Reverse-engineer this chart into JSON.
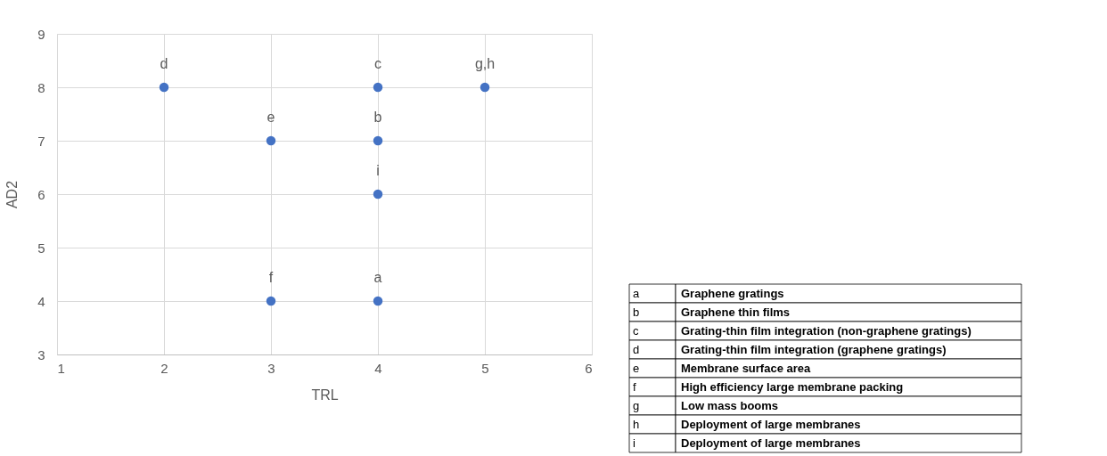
{
  "chart_data": {
    "type": "scatter",
    "xlabel": "TRL",
    "ylabel": "AD2",
    "x": [
      4,
      4,
      4,
      2,
      3,
      3,
      5,
      4
    ],
    "series": [
      {
        "color": "#4472c4",
        "values": [
          4,
          7,
          8,
          8,
          7,
          4,
          8,
          6
        ]
      }
    ],
    "xlim": [
      1,
      6
    ],
    "xticks": [
      1,
      2,
      3,
      4,
      5,
      6
    ],
    "ylim": [
      3,
      9
    ],
    "yticks": [
      3,
      4,
      5,
      6,
      7,
      8,
      9
    ],
    "grid": true,
    "marker": "circle",
    "annotations": [
      {
        "text": "a",
        "x": 4,
        "y": 4
      },
      {
        "text": "b",
        "x": 4,
        "y": 7
      },
      {
        "text": "c",
        "x": 4,
        "y": 8
      },
      {
        "text": "d",
        "x": 2,
        "y": 8
      },
      {
        "text": "e",
        "x": 3,
        "y": 7
      },
      {
        "text": "f",
        "x": 3,
        "y": 4
      },
      {
        "text": "g,h",
        "x": 5,
        "y": 8
      },
      {
        "text": "i",
        "x": 4,
        "y": 6
      },
      "a",
      "Graphene gratings",
      "b",
      "Graphene thin films",
      "c",
      "Grating-thin film integration (non-graphene gratings)",
      "d",
      "Grating-thin film integration (graphene gratings)",
      "e",
      "Membrane surface area",
      "f",
      "High efficiency large membrane packing",
      "g",
      "Low mass booms",
      "h",
      "Deployment of large membranes",
      "i",
      "Deployment of large membranes"
    ]
  }
}
